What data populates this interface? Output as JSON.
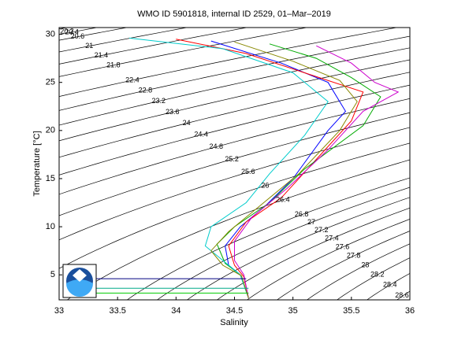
{
  "chart_data": {
    "type": "line",
    "title": "WMO ID 5901818, internal ID 2529, 01–Mar–2019",
    "xlabel": "Salinity",
    "ylabel": "Temperature [°C]",
    "xlim": [
      33,
      36
    ],
    "xticks": [
      33,
      33.5,
      34,
      34.5,
      35,
      35.5,
      36
    ],
    "ylim": [
      2.4,
      30.7
    ],
    "yticks": [
      5,
      10,
      15,
      20,
      25,
      30
    ],
    "contour_levels": [
      20.2,
      20.4,
      20.6,
      21,
      21.4,
      21.8,
      22.4,
      22.8,
      23.2,
      23.6,
      24,
      24.4,
      24.8,
      25.2,
      25.6,
      26,
      26.4,
      26.8,
      27,
      27.2,
      27.4,
      27.6,
      27.8,
      28,
      28.2,
      28.4,
      28.6
    ],
    "contour_color": "#000000",
    "series": [
      {
        "color": "#0000ff",
        "x": [
          34.3,
          34.9,
          35.3,
          35.45,
          35.3,
          35.0,
          34.75,
          34.55,
          34.42,
          34.45,
          34.55,
          34.62
        ],
        "values": [
          29.3,
          27,
          25,
          22,
          20,
          15,
          12,
          10,
          8,
          6,
          5,
          2.6
        ]
      },
      {
        "color": "#ff0000",
        "x": [
          34.0,
          34.6,
          35.1,
          35.6,
          35.5,
          35.2,
          34.9,
          34.6,
          34.45,
          34.5,
          34.58,
          34.62
        ],
        "values": [
          29.5,
          28,
          26,
          24,
          21,
          17,
          13,
          10.5,
          8,
          6,
          4.8,
          2.6
        ]
      },
      {
        "color": "#00aa00",
        "x": [
          34.8,
          35.2,
          35.5,
          35.75,
          35.6,
          35.1,
          34.8,
          34.5,
          34.35,
          34.42,
          34.55,
          34.62
        ],
        "values": [
          29.0,
          27.5,
          25.5,
          23.5,
          20.5,
          16,
          12.5,
          10,
          8.2,
          6.2,
          5,
          2.6
        ]
      },
      {
        "color": "#00cccc",
        "x": [
          33.6,
          34.4,
          35.0,
          35.3,
          35.1,
          34.8,
          34.6,
          34.3,
          34.25,
          34.4,
          34.55,
          34.62
        ],
        "values": [
          29.6,
          28.5,
          26,
          23,
          19.5,
          15.5,
          12.5,
          10,
          8,
          6.5,
          5,
          2.6
        ]
      },
      {
        "color": "#cc00cc",
        "x": [
          35.2,
          35.5,
          35.7,
          35.9,
          35.6,
          35.3,
          34.95,
          34.65,
          34.5,
          34.5,
          34.58,
          34.62
        ],
        "values": [
          28.8,
          27,
          25,
          24,
          22,
          18,
          14,
          11,
          8.5,
          6.5,
          5,
          2.6
        ]
      },
      {
        "color": "#888800",
        "x": [
          34.5,
          35.0,
          35.4,
          35.55,
          35.4,
          35.05,
          34.7,
          34.45,
          34.3,
          34.4,
          34.56,
          34.62
        ],
        "values": [
          29.2,
          27.2,
          25.2,
          23,
          20,
          15.5,
          12,
          9.5,
          7.5,
          6,
          4.9,
          2.6
        ]
      },
      {
        "color": "#000080",
        "x": [
          33.1,
          34.6
        ],
        "values": [
          4.6,
          4.6
        ]
      },
      {
        "color": "#00aa88",
        "x": [
          33.1,
          34.62
        ],
        "values": [
          3.6,
          3.6
        ]
      },
      {
        "color": "#00cc00",
        "x": [
          33.1,
          34.62
        ],
        "values": [
          3.1,
          3.1
        ]
      }
    ]
  }
}
